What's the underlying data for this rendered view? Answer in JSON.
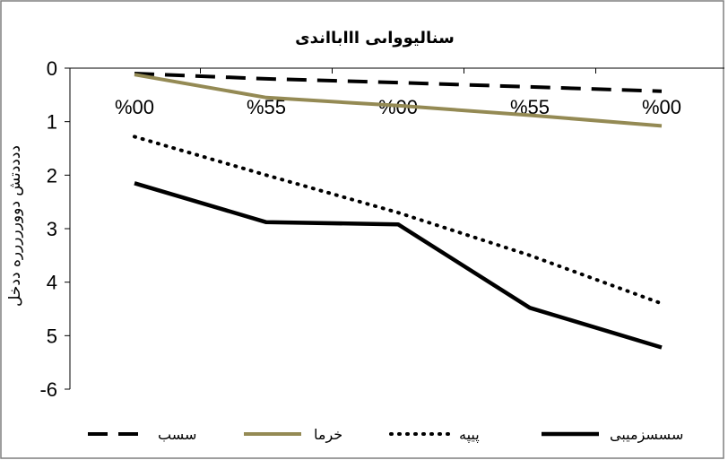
{
  "chart_data": {
    "type": "line",
    "title": "سنالیوواىی      ااابااندى",
    "ylabel": "ددددتش  دووررررره ددخل",
    "xlabel": "",
    "categories": [
      "%00",
      "%55",
      "%00",
      "%55",
      "%00"
    ],
    "yticks": [
      "0",
      "1",
      "2",
      "3",
      "4",
      "5",
      "-6"
    ],
    "ylim": [
      -6,
      0
    ],
    "grid": false,
    "legend": "bottom",
    "series": [
      {
        "name": "سسب",
        "values": [
          -0.1,
          -0.2,
          -0.27,
          -0.35,
          -0.43
        ],
        "color": "#000000",
        "style": "dashed"
      },
      {
        "name": "خرما",
        "values": [
          -0.12,
          -0.55,
          -0.7,
          -0.88,
          -1.08
        ],
        "color": "#948a54",
        "style": "solid"
      },
      {
        "name": "پیپه",
        "values": [
          -1.28,
          -2.0,
          -2.7,
          -3.5,
          -4.4
        ],
        "color": "#000000",
        "style": "dotted"
      },
      {
        "name": "سسسزمیبی",
        "values": [
          -2.15,
          -2.88,
          -2.92,
          -4.48,
          -5.22
        ],
        "color": "#000000",
        "style": "solid-thick"
      }
    ]
  }
}
